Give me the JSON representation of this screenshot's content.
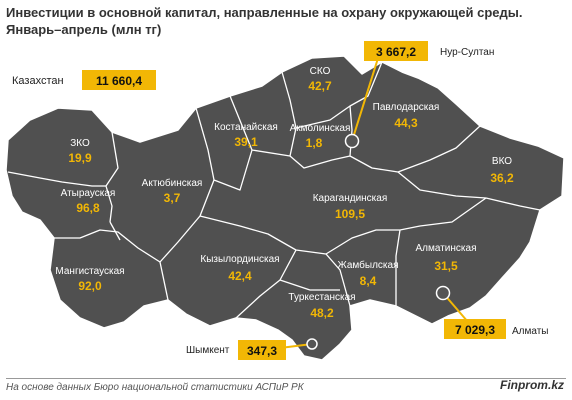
{
  "title": {
    "line1": "Инвестиции в основной капитал, направленные на охрану окружающей среды.",
    "line2": "Январь–апрель (млн тг)"
  },
  "total": {
    "label": "Казахстан",
    "value": "11 660,4"
  },
  "regions": [
    {
      "id": "zko",
      "name": "ЗКО",
      "value": "19,9"
    },
    {
      "id": "atyrau",
      "name": "Атырауская",
      "value": "96,8"
    },
    {
      "id": "mangistau",
      "name": "Мангистауская",
      "value": "92,0"
    },
    {
      "id": "aktobe",
      "name": "Актюбинская",
      "value": "3,7"
    },
    {
      "id": "kostanay",
      "name": "Костанайская",
      "value": "39,1"
    },
    {
      "id": "sko",
      "name": "СКО",
      "value": "42,7"
    },
    {
      "id": "akmola",
      "name": "Акмолинская",
      "value": "1,8"
    },
    {
      "id": "pavlodar",
      "name": "Павлодарская",
      "value": "44,3"
    },
    {
      "id": "vko",
      "name": "ВКО",
      "value": "36,2"
    },
    {
      "id": "karaganda",
      "name": "Карагандинская",
      "value": "109,5"
    },
    {
      "id": "kyzylorda",
      "name": "Кызылординская",
      "value": "42,4"
    },
    {
      "id": "zhambyl",
      "name": "Жамбылская",
      "value": "8,4"
    },
    {
      "id": "almaty-region",
      "name": "Алматинская",
      "value": "31,5"
    },
    {
      "id": "turkestan",
      "name": "Туркестанская",
      "value": "48,2"
    }
  ],
  "cities": [
    {
      "id": "nur-sultan",
      "name": "Нур-Султан",
      "value": "3 667,2"
    },
    {
      "id": "almaty",
      "name": "Алматы",
      "value": "7 029,3"
    },
    {
      "id": "shymkent",
      "name": "Шымкент",
      "value": "347,3"
    }
  ],
  "colors": {
    "land": "#505050",
    "border": "#ffffff",
    "accent": "#f2b705",
    "value_text": "#f2b705"
  },
  "footer": {
    "source": "На основе данных Бюро национальной статистики АСПиР РК",
    "brand": "Finprom.kz"
  }
}
